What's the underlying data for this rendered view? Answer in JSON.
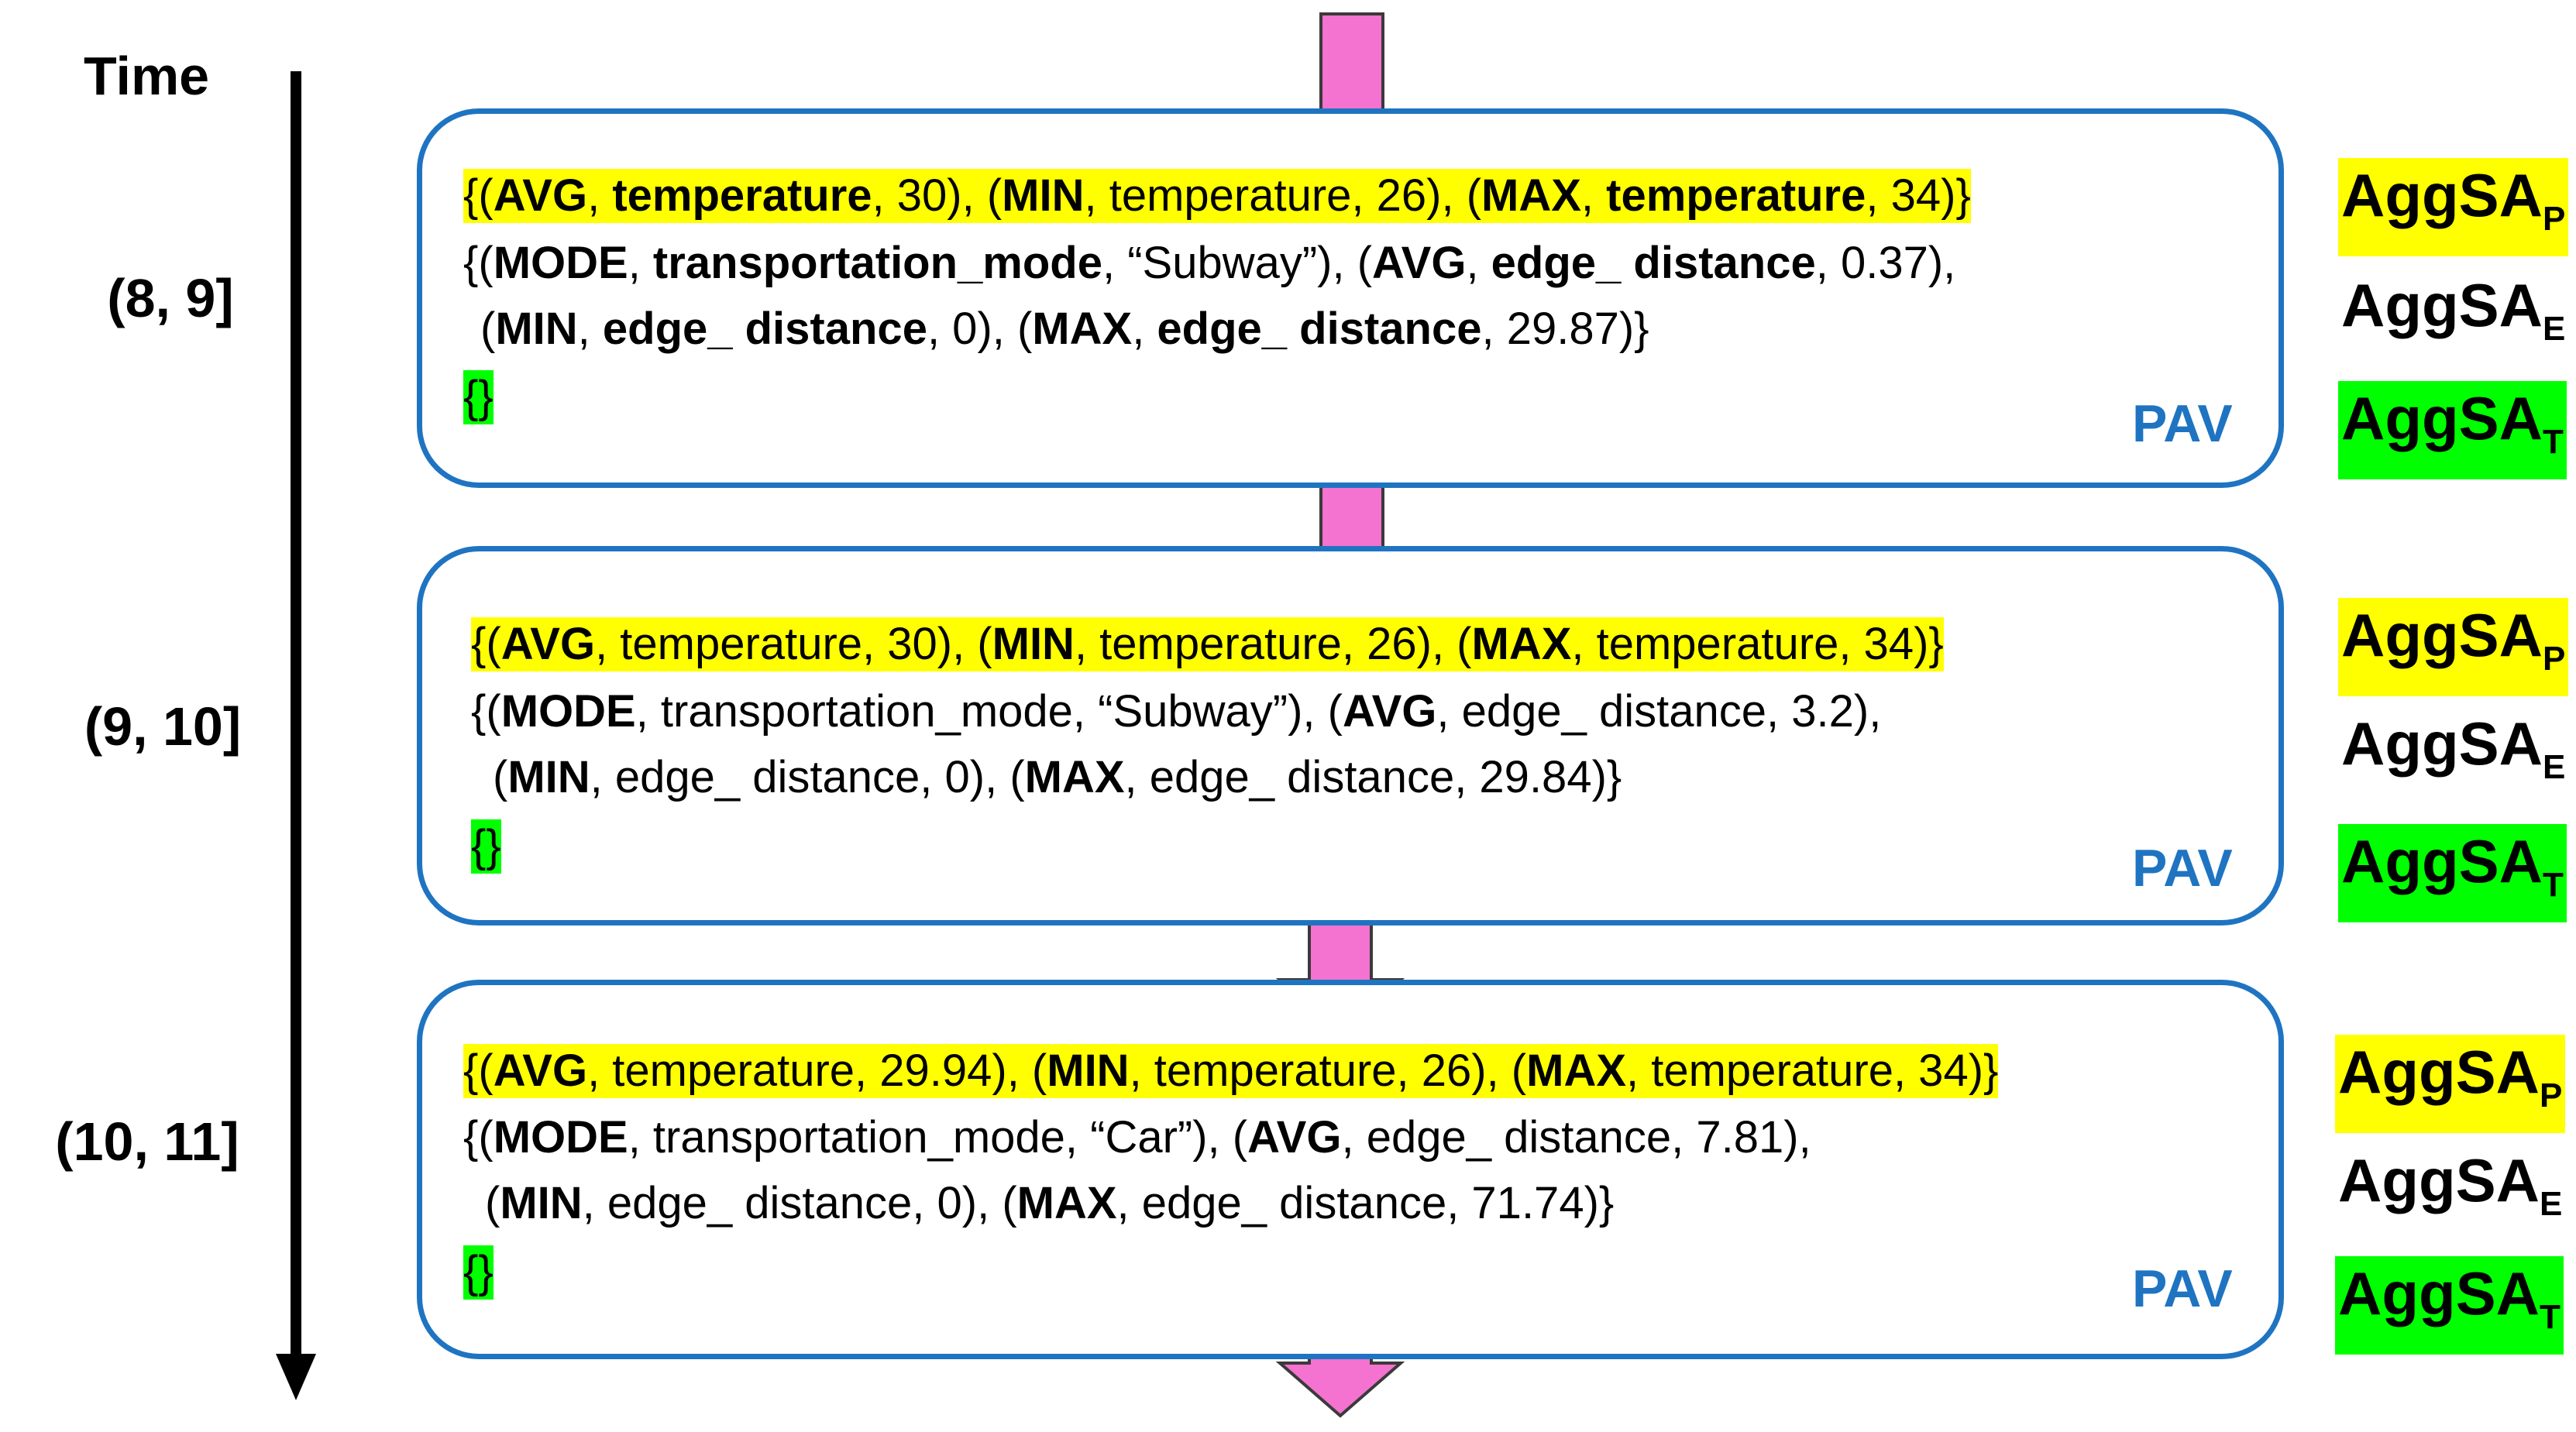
{
  "time_label": "Time",
  "colors": {
    "box_border": "#1f74c2",
    "arrow": "#f472d0",
    "highlight_yellow": "#ffff00",
    "highlight_green": "#00ff00"
  },
  "steps": [
    {
      "interval": "(8, 9]",
      "pav_label": "PAV",
      "p_line": {
        "open": "{(",
        "a1": "AVG",
        "s1": ", ",
        "b1": "temperature",
        "t1": ", 30), (",
        "a2": "MIN",
        "s2": ", temperature, 26), (",
        "a3": "MAX",
        "s3": ", ",
        "b3": "temperature",
        "t3": ", 34)}"
      },
      "e_line1": {
        "open": "{(",
        "a1": "MODE",
        "s1": ", ",
        "b1": "transportation_mode",
        "t1": ", “Subway”), (",
        "a2": "AVG",
        "s2": ", ",
        "b2": "edge_ distance",
        "t2": ", 0.37),"
      },
      "e_line2": {
        "open": "(",
        "a1": "MIN",
        "s1": ", ",
        "b1": "edge_ distance",
        "t1": ", 0), (",
        "a2": "MAX",
        "s2": ", ",
        "b2": "edge_ distance",
        "t2": ", 29.87)}"
      },
      "t_line": "{}"
    },
    {
      "interval": "(9, 10]",
      "pav_label": "PAV",
      "p_line": {
        "open": "{(",
        "a1": "AVG",
        "s1": ", temperature, 30), (",
        "a2": "MIN",
        "s2": ", temperature, 26), (",
        "a3": "MAX",
        "s3": ", temperature, 34)}"
      },
      "e_line1": {
        "open": "{(",
        "a1": "MODE",
        "s1": ", transportation_mode, “Subway”), (",
        "a2": "AVG",
        "s2": ", edge_ distance, 3.2),"
      },
      "e_line2": {
        "open": "(",
        "a1": "MIN",
        "s1": ", edge_ distance, 0), (",
        "a2": "MAX",
        "s2": ", edge_ distance, 29.84)}"
      },
      "t_line": "{}"
    },
    {
      "interval": "(10, 11]",
      "pav_label": "PAV",
      "p_line": {
        "open": "{(",
        "a1": "AVG",
        "s1": ", temperature, 29.94), (",
        "a2": "MIN",
        "s2": ", temperature, 26), (",
        "a3": "MAX",
        "s3": ", temperature, 34)}"
      },
      "e_line1": {
        "open": "{(",
        "a1": "MODE",
        "s1": ", transportation_mode, “Car”), (",
        "a2": "AVG",
        "s2": ", edge_ distance, 7.81),"
      },
      "e_line2": {
        "open": "(",
        "a1": "MIN",
        "s1": ", edge_ distance, 0), (",
        "a2": "MAX",
        "s2": ", edge_ distance, 71.74)}"
      },
      "t_line": "{}"
    }
  ],
  "agg_labels": {
    "p": {
      "base": "AggSA",
      "sub": "P"
    },
    "e": {
      "base": "AggSA",
      "sub": "E"
    },
    "t": {
      "base": "AggSA",
      "sub": "T"
    }
  }
}
